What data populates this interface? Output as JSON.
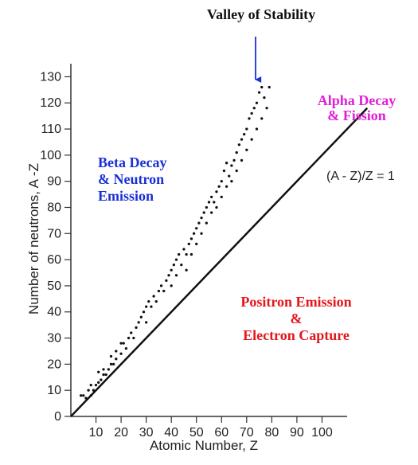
{
  "chart_data": {
    "type": "scatter",
    "title": "Valley of Stability",
    "xlabel": "Atomic Number, Z",
    "ylabel": "Number of neutrons, A -Z",
    "xlim": [
      0,
      110
    ],
    "ylim": [
      0,
      135
    ],
    "x_ticks": [
      10,
      20,
      30,
      40,
      50,
      60,
      70,
      80,
      90,
      100
    ],
    "y_ticks": [
      0,
      10,
      20,
      30,
      40,
      50,
      60,
      70,
      80,
      90,
      100,
      110,
      120,
      130
    ],
    "grid": false,
    "reference_line": {
      "label": "(A - Z)/Z = 1",
      "from": [
        0,
        0
      ],
      "to": [
        118,
        118
      ]
    },
    "annotations": [
      {
        "id": "beta",
        "lines": [
          "Beta Decay",
          "& Neutron",
          "Emission"
        ],
        "color": "#1a2fd6"
      },
      {
        "id": "alpha",
        "lines": [
          "Alpha Decay",
          "& Fission"
        ],
        "color": "#e11fd9"
      },
      {
        "id": "positron",
        "lines": [
          "Positron Emission",
          "&",
          "Electron Capture"
        ],
        "color": "#e3161c"
      }
    ],
    "arrow_target": [
      75,
      130
    ],
    "points": [
      [
        4,
        8
      ],
      [
        5,
        8
      ],
      [
        6,
        7
      ],
      [
        7,
        10
      ],
      [
        8,
        8
      ],
      [
        8,
        12
      ],
      [
        9,
        10
      ],
      [
        10,
        12
      ],
      [
        11,
        13
      ],
      [
        11,
        17
      ],
      [
        12,
        14
      ],
      [
        13,
        16
      ],
      [
        13,
        18
      ],
      [
        14,
        16
      ],
      [
        15,
        18
      ],
      [
        16,
        20
      ],
      [
        16,
        23
      ],
      [
        17,
        20
      ],
      [
        18,
        22
      ],
      [
        18,
        25
      ],
      [
        20,
        24
      ],
      [
        20,
        28
      ],
      [
        21,
        28
      ],
      [
        22,
        26
      ],
      [
        23,
        30
      ],
      [
        24,
        32
      ],
      [
        25,
        30
      ],
      [
        26,
        34
      ],
      [
        27,
        36
      ],
      [
        28,
        38
      ],
      [
        29,
        40
      ],
      [
        30,
        42
      ],
      [
        30,
        36
      ],
      [
        31,
        44
      ],
      [
        32,
        42
      ],
      [
        33,
        46
      ],
      [
        34,
        44
      ],
      [
        35,
        48
      ],
      [
        36,
        50
      ],
      [
        37,
        48
      ],
      [
        38,
        52
      ],
      [
        39,
        54
      ],
      [
        40,
        56
      ],
      [
        40,
        50
      ],
      [
        41,
        58
      ],
      [
        42,
        60
      ],
      [
        42,
        54
      ],
      [
        43,
        62
      ],
      [
        44,
        58
      ],
      [
        45,
        64
      ],
      [
        46,
        62
      ],
      [
        46,
        56
      ],
      [
        47,
        66
      ],
      [
        48,
        68
      ],
      [
        48,
        62
      ],
      [
        49,
        70
      ],
      [
        50,
        72
      ],
      [
        50,
        66
      ],
      [
        51,
        74
      ],
      [
        52,
        76
      ],
      [
        52,
        70
      ],
      [
        53,
        78
      ],
      [
        54,
        80
      ],
      [
        54,
        74
      ],
      [
        55,
        82
      ],
      [
        56,
        84
      ],
      [
        56,
        78
      ],
      [
        57,
        82
      ],
      [
        58,
        86
      ],
      [
        58,
        80
      ],
      [
        59,
        88
      ],
      [
        60,
        90
      ],
      [
        60,
        84
      ],
      [
        61,
        94
      ],
      [
        62,
        97
      ],
      [
        62,
        88
      ],
      [
        63,
        92
      ],
      [
        64,
        96
      ],
      [
        64,
        90
      ],
      [
        65,
        98
      ],
      [
        66,
        101
      ],
      [
        66,
        94
      ],
      [
        67,
        104
      ],
      [
        68,
        106
      ],
      [
        68,
        98
      ],
      [
        69,
        108
      ],
      [
        70,
        110
      ],
      [
        70,
        102
      ],
      [
        71,
        114
      ],
      [
        72,
        116
      ],
      [
        72,
        106
      ],
      [
        73,
        118
      ],
      [
        74,
        120
      ],
      [
        74,
        110
      ],
      [
        75,
        124
      ],
      [
        76,
        126
      ],
      [
        76,
        114
      ],
      [
        77,
        122
      ],
      [
        78,
        118
      ],
      [
        79,
        126
      ]
    ]
  }
}
